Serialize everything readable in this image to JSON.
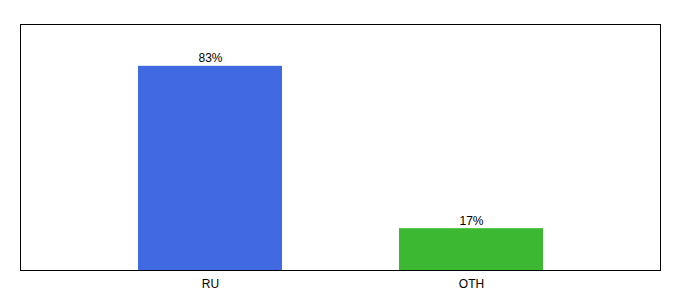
{
  "chart_data": {
    "type": "bar",
    "categories": [
      "RU",
      "OTH"
    ],
    "values": [
      83,
      17
    ],
    "value_labels": [
      "83%",
      "17%"
    ],
    "colors": [
      "#4169e1",
      "#3cb832"
    ],
    "ylim": [
      0,
      100
    ],
    "data_labels": true,
    "tick_labels": "x",
    "grid": false
  }
}
